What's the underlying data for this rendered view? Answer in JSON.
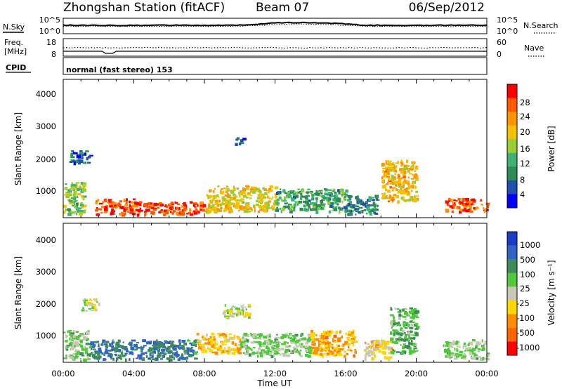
{
  "header": {
    "station": "Zhongshan Station (fitACF)",
    "beam": "Beam 07",
    "date": "06/Sep/2012"
  },
  "sky_panel": {
    "left_label": "N.Sky",
    "right_label": "N.Search",
    "left_ticks": [
      "10^5",
      "10^0"
    ],
    "right_ticks": [
      "10^5",
      "10^0"
    ]
  },
  "freq_panel": {
    "left_label_top": "Freq.",
    "left_label_bottom": "[MHz]",
    "right_label": "Nave",
    "left_ticks": [
      "18",
      "8"
    ],
    "right_ticks": [
      "60",
      "0"
    ]
  },
  "cpid_panel": {
    "label": "CPID",
    "value": "normal (fast stereo) 153"
  },
  "power_panel": {
    "ylabel": "Slant Range [km]",
    "y_ticks": [
      "4000",
      "3000",
      "2000",
      "1000"
    ],
    "colorbar_label": "Power [dB]",
    "colorbar_ticks": [
      "28",
      "24",
      "20",
      "16",
      "12",
      "8",
      "4"
    ],
    "colorbar_colors": [
      "#ff0000",
      "#ff5a00",
      "#ff9400",
      "#f5c000",
      "#9acd32",
      "#3cb371",
      "#2e8b57",
      "#1e50b4",
      "#0000ff"
    ]
  },
  "velocity_panel": {
    "ylabel": "Slant Range [km]",
    "y_ticks": [
      "4000",
      "3000",
      "2000",
      "1000"
    ],
    "colorbar_label": "Velocity [m s⁻¹]",
    "colorbar_ticks": [
      "1000",
      "500",
      "100",
      "25",
      "-25",
      "-100",
      "-500",
      "-1000"
    ],
    "colorbar_colors": [
      "#1a3cc8",
      "#3264c8",
      "#3c8c5a",
      "#50c83c",
      "#c8c8b4",
      "#ffd700",
      "#ff8c00",
      "#ff6400",
      "#ff0000"
    ]
  },
  "x_axis": {
    "label": "Time UT",
    "ticks": [
      "00:00",
      "04:00",
      "08:00",
      "12:00",
      "16:00",
      "20:00",
      "00:00"
    ]
  },
  "chart_data": [
    {
      "type": "heatmap",
      "title": "Zhongshan Station (fitACF) Beam 07 06/Sep/2012",
      "xlabel": "Time UT",
      "ylabel": "Slant Range [km]",
      "xlim": [
        "00:00",
        "24:00"
      ],
      "ylim": [
        180,
        4500
      ],
      "colorbar": "Power [dB]",
      "clim": [
        0,
        30
      ],
      "regions": [
        {
          "t": [
            0.0,
            1.2
          ],
          "range_km": [
            300,
            1300
          ],
          "power_db": 14
        },
        {
          "t": [
            1.8,
            4.0
          ],
          "range_km": [
            300,
            800
          ],
          "power_db": 26
        },
        {
          "t": [
            4.0,
            8.0
          ],
          "range_km": [
            300,
            700
          ],
          "power_db": 28
        },
        {
          "t": [
            8.0,
            12.0
          ],
          "range_km": [
            400,
            1200
          ],
          "power_db": 18
        },
        {
          "t": [
            12.0,
            16.0
          ],
          "range_km": [
            400,
            1100
          ],
          "power_db": 10
        },
        {
          "t": [
            16.0,
            17.8
          ],
          "range_km": [
            300,
            900
          ],
          "power_db": 8
        },
        {
          "t": [
            18.0,
            20.0
          ],
          "range_km": [
            700,
            2000
          ],
          "power_db": 20
        },
        {
          "t": [
            21.6,
            24.0
          ],
          "range_km": [
            400,
            800
          ],
          "power_db": 26
        },
        {
          "t": [
            0.3,
            1.5
          ],
          "range_km": [
            1900,
            2300
          ],
          "power_db": 6
        },
        {
          "t": [
            9.7,
            10.2
          ],
          "range_km": [
            2500,
            2700
          ],
          "power_db": 6
        }
      ]
    },
    {
      "type": "heatmap",
      "title": "",
      "xlabel": "Time UT",
      "ylabel": "Slant Range [km]",
      "xlim": [
        "00:00",
        "24:00"
      ],
      "ylim": [
        180,
        4500
      ],
      "colorbar": "Velocity [m s⁻¹]",
      "clim": [
        -1000,
        1000
      ],
      "regions": [
        {
          "t": [
            0.0,
            1.5
          ],
          "range_km": [
            300,
            1200
          ],
          "velocity": 200
        },
        {
          "t": [
            1.5,
            7.5
          ],
          "range_km": [
            300,
            900
          ],
          "velocity": 600
        },
        {
          "t": [
            7.5,
            10.0
          ],
          "range_km": [
            500,
            1100
          ],
          "velocity": -300
        },
        {
          "t": [
            10.0,
            14.0
          ],
          "range_km": [
            400,
            1100
          ],
          "velocity": 150
        },
        {
          "t": [
            14.0,
            16.5
          ],
          "range_km": [
            400,
            1200
          ],
          "velocity": -400
        },
        {
          "t": [
            17.0,
            18.5
          ],
          "range_km": [
            300,
            900
          ],
          "velocity": -200
        },
        {
          "t": [
            18.5,
            20.0
          ],
          "range_km": [
            500,
            1900
          ],
          "velocity": 300
        },
        {
          "t": [
            21.5,
            24.0
          ],
          "range_km": [
            300,
            900
          ],
          "velocity": 150
        },
        {
          "t": [
            1.0,
            2.0
          ],
          "range_km": [
            1800,
            2200
          ],
          "velocity": 0
        },
        {
          "t": [
            9.0,
            10.5
          ],
          "range_km": [
            1600,
            2000
          ],
          "velocity": 0
        }
      ]
    }
  ]
}
